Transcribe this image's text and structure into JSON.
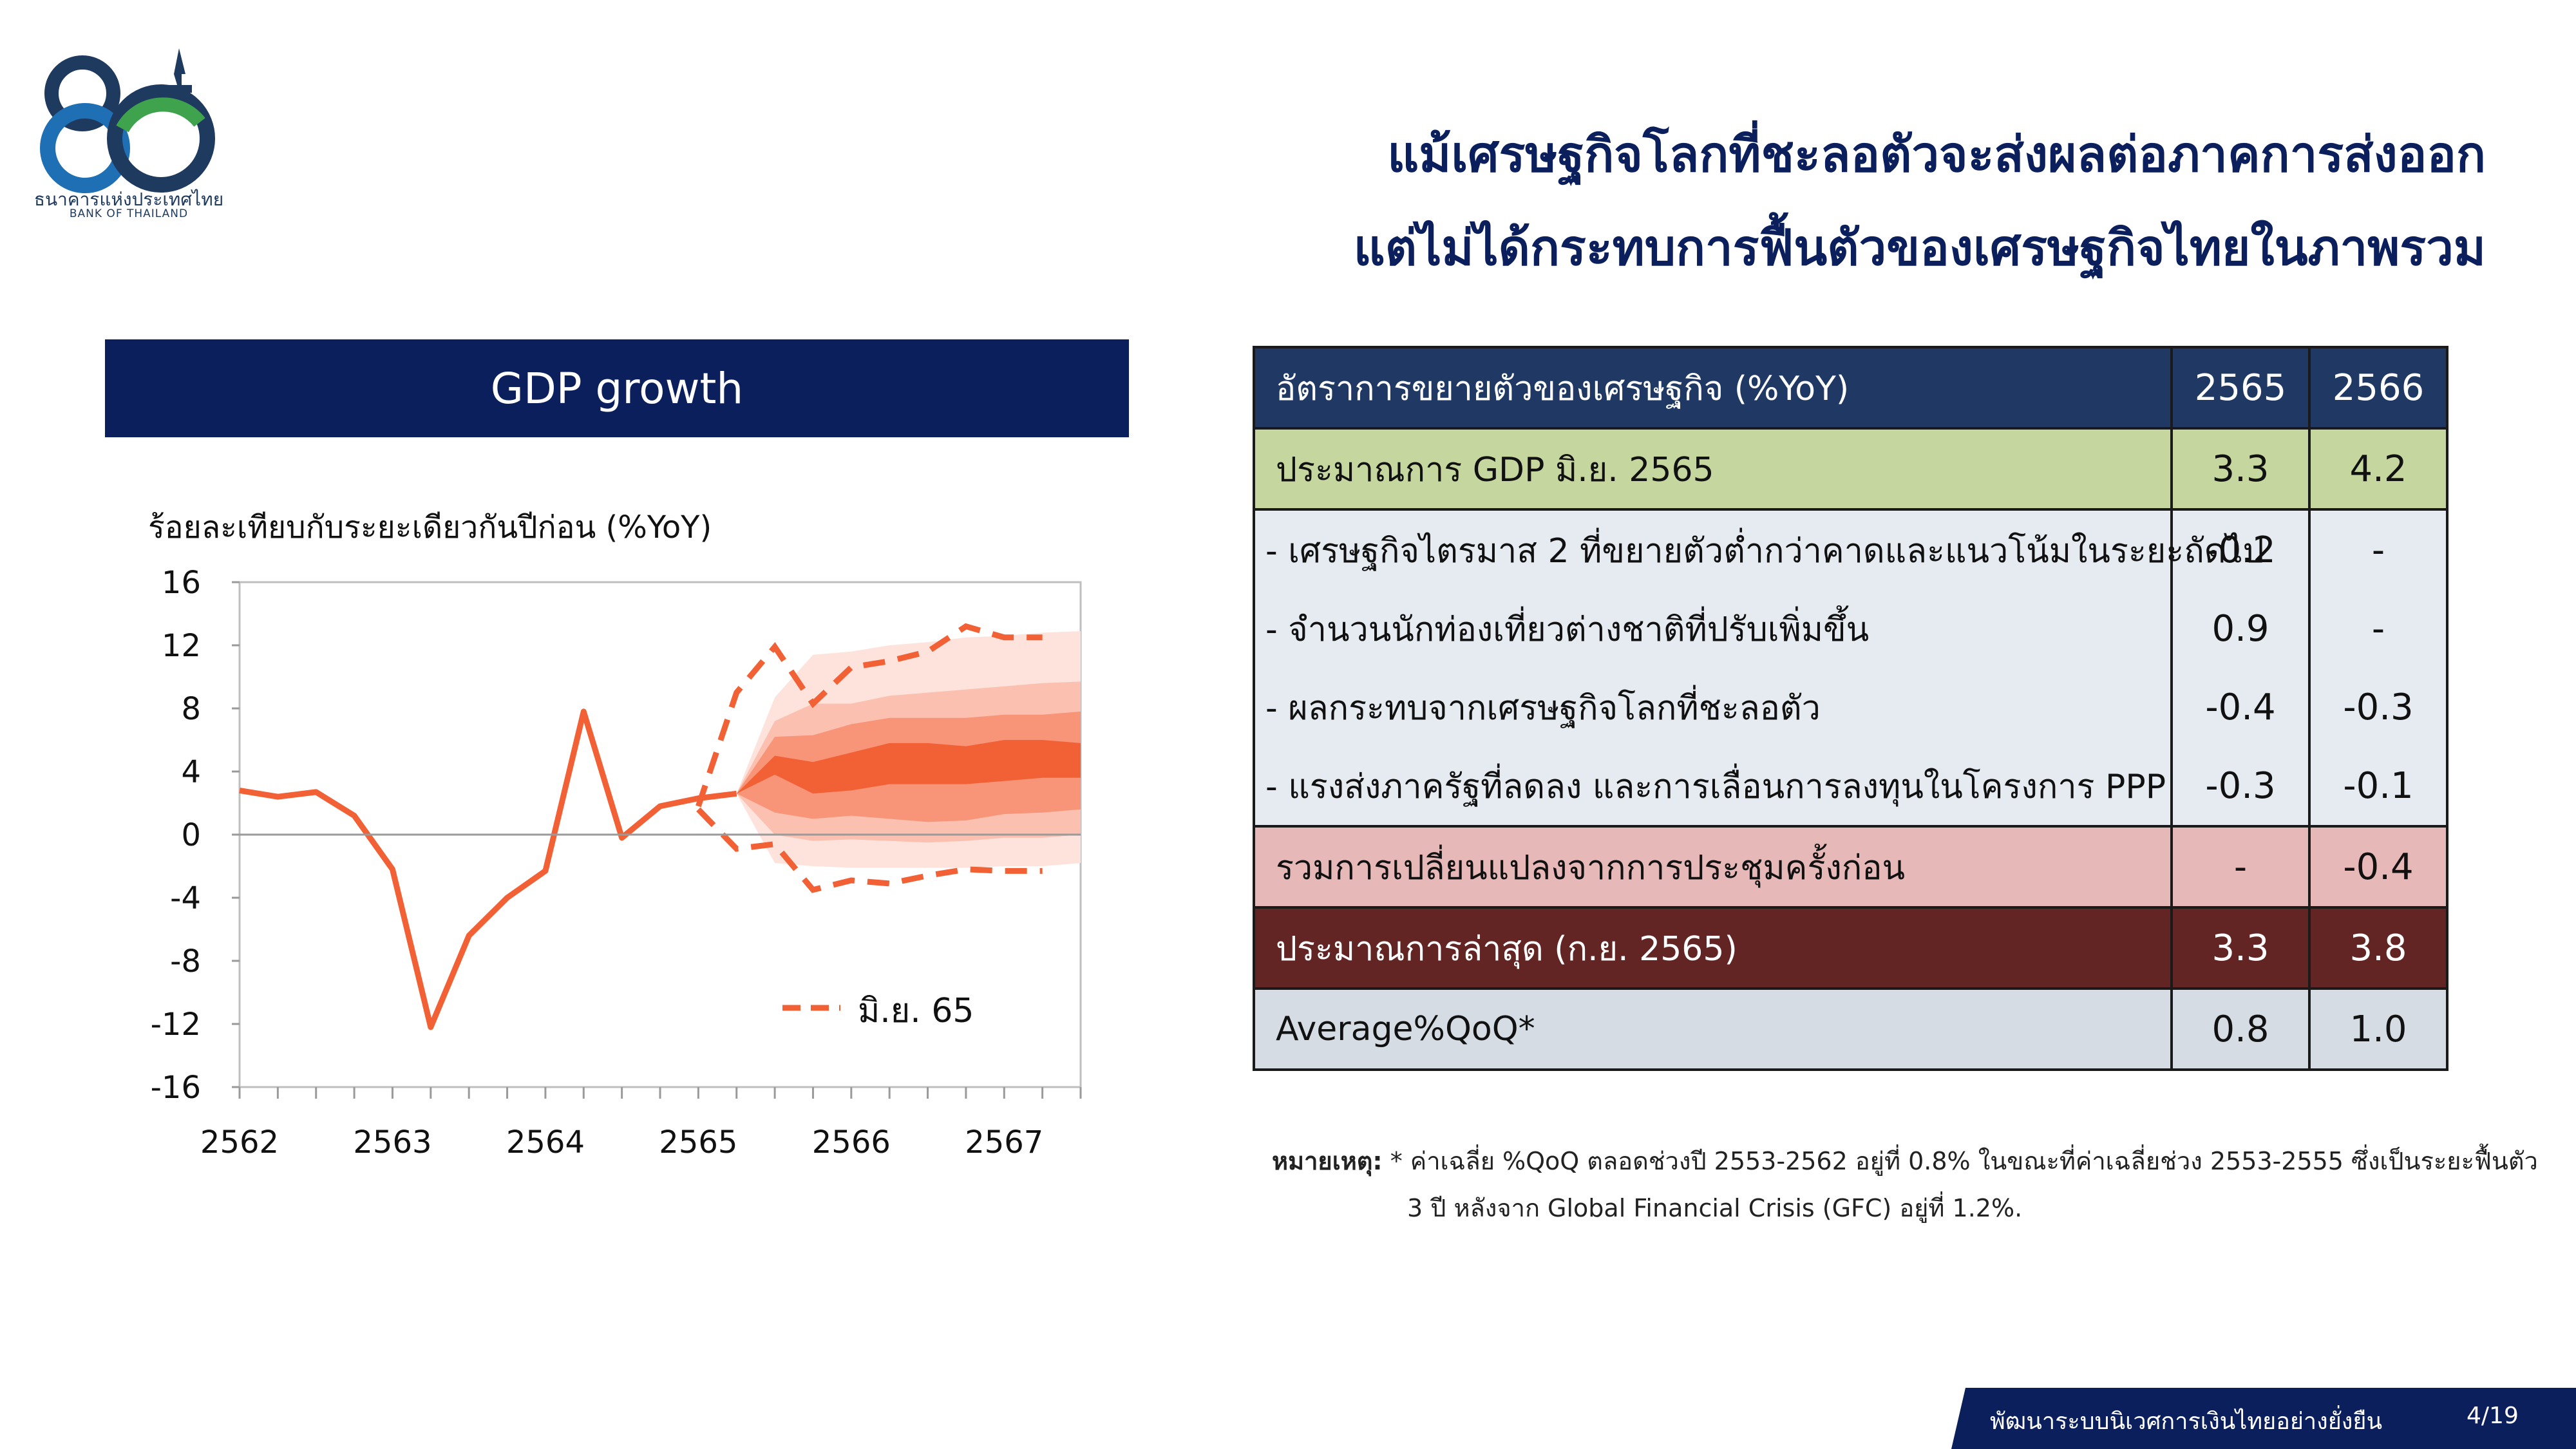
{
  "logo": {
    "number": "80",
    "name_th": "ธนาคารแห่งประเทศไทย",
    "name_en": "BANK OF THAILAND",
    "colors": {
      "navy": "#1e3a5f",
      "blue": "#1f6fb5",
      "green": "#3fa34d"
    }
  },
  "headline": {
    "line1": "แม้เศรษฐกิจโลกที่ชะลอตัวจะส่งผลต่อภาคการส่งออก",
    "line2": "แต่ไม่ได้กระทบการฟื้นตัวของเศรษฐกิจไทยในภาพรวม"
  },
  "chart_panel": {
    "header": "GDP growth"
  },
  "chart_data": {
    "type": "line",
    "title": "",
    "ylabel": "ร้อยละเทียบกับระยะเดียวกันปีก่อน (%YoY)",
    "xlabel": "",
    "ylim": [
      -16,
      16
    ],
    "yticks": [
      16,
      12,
      8,
      4,
      0,
      -4,
      -8,
      -12,
      -16
    ],
    "x_range": [
      0,
      22
    ],
    "xticks": [
      {
        "label": "2562",
        "x": 0
      },
      {
        "label": "2563",
        "x": 4
      },
      {
        "label": "2564",
        "x": 8
      },
      {
        "label": "2565",
        "x": 12
      },
      {
        "label": "2566",
        "x": 16
      },
      {
        "label": "2567",
        "x": 20
      }
    ],
    "grid": false,
    "series": [
      {
        "type": "line",
        "color": "#f26135",
        "points": [
          [
            0,
            2.8
          ],
          [
            1,
            2.4
          ],
          [
            2,
            2.7
          ],
          [
            3,
            1.2
          ],
          [
            4,
            -2.2
          ],
          [
            5,
            -12.2
          ],
          [
            6,
            -6.4
          ],
          [
            7,
            -4.0
          ],
          [
            8,
            -2.3
          ],
          [
            9,
            7.8
          ],
          [
            10,
            -0.2
          ],
          [
            11,
            1.8
          ],
          [
            12,
            2.3
          ],
          [
            13,
            2.6
          ]
        ]
      },
      {
        "name": "มิ.ย. 65",
        "type": "line",
        "style": "dashed",
        "color": "#f26135",
        "upper": [
          [
            12,
            1.8
          ],
          [
            13,
            9.0
          ],
          [
            14,
            11.9
          ],
          [
            15,
            8.3
          ],
          [
            16,
            10.6
          ],
          [
            17,
            11.0
          ],
          [
            18,
            11.6
          ],
          [
            19,
            13.2
          ],
          [
            20,
            12.5
          ],
          [
            21,
            12.5
          ]
        ],
        "lower": [
          [
            12,
            1.6
          ],
          [
            13,
            -0.9
          ],
          [
            14,
            -0.6
          ],
          [
            15,
            -3.5
          ],
          [
            16,
            -2.9
          ],
          [
            17,
            -3.1
          ],
          [
            18,
            -2.6
          ],
          [
            19,
            -2.2
          ],
          [
            20,
            -2.3
          ],
          [
            21,
            -2.3
          ]
        ]
      }
    ],
    "fan": {
      "x": [
        13,
        14,
        15,
        16,
        17,
        18,
        19,
        20,
        21,
        22
      ],
      "colors": [
        "#fde3dc",
        "#fbc0b0",
        "#f89478",
        "#f26135"
      ],
      "bands": [
        {
          "lower": [
            2.6,
            -1.8,
            -2.0,
            -2.1,
            -2.1,
            -2.1,
            -2.1,
            -2.0,
            -2.0,
            -1.8
          ],
          "upper": [
            2.6,
            8.7,
            11.4,
            11.6,
            12.0,
            12.2,
            12.5,
            12.6,
            12.8,
            12.9
          ]
        },
        {
          "lower": [
            2.6,
            0.0,
            -0.4,
            -0.3,
            -0.4,
            -0.5,
            -0.4,
            -0.2,
            -0.2,
            0.0
          ],
          "upper": [
            2.6,
            7.2,
            8.3,
            8.3,
            8.8,
            9.0,
            9.2,
            9.4,
            9.6,
            9.7
          ]
        },
        {
          "lower": [
            2.6,
            1.4,
            1.0,
            1.2,
            1.0,
            0.8,
            0.9,
            1.3,
            1.4,
            1.6
          ],
          "upper": [
            2.6,
            6.2,
            6.3,
            7.0,
            7.4,
            7.4,
            7.4,
            7.6,
            7.6,
            7.8
          ]
        },
        {
          "lower": [
            2.6,
            3.8,
            2.6,
            2.8,
            3.2,
            3.2,
            3.2,
            3.4,
            3.6,
            3.6
          ],
          "upper": [
            2.6,
            5.0,
            4.6,
            5.2,
            5.8,
            5.8,
            5.6,
            6.0,
            6.0,
            5.8
          ]
        }
      ]
    },
    "legend": {
      "label": "มิ.ย. 65",
      "placement": "bottom-right"
    }
  },
  "table": {
    "header": {
      "label": "อัตราการขยายตัวของเศรษฐกิจ (%YoY)",
      "y1": "2565",
      "y2": "2566"
    },
    "rows": [
      {
        "label": "ประมาณการ GDP มิ.ย. 2565",
        "v1": "3.3",
        "v2": "4.2"
      },
      {
        "label": "- เศรษฐกิจไตรมาส 2 ที่ขยายตัวต่ำกว่าคาดและแนวโน้มในระยะถัดไป",
        "v1": "-0.2",
        "v2": "-"
      },
      {
        "label": "- จำนวนนักท่องเที่ยวต่างชาติที่ปรับเพิ่มขึ้น",
        "v1": "0.9",
        "v2": "-"
      },
      {
        "label": "- ผลกระทบจากเศรษฐกิจโลกที่ชะลอตัว",
        "v1": "-0.4",
        "v2": "-0.3"
      },
      {
        "label": "- แรงส่งภาครัฐที่ลดลง และการเลื่อนการลงทุนในโครงการ PPP",
        "v1": "-0.3",
        "v2": "-0.1"
      },
      {
        "label": "รวมการเปลี่ยนแปลงจากการประชุมครั้งก่อน",
        "v1": "-",
        "v2": "-0.4"
      },
      {
        "label": "ประมาณการล่าสุด (ก.ย. 2565)",
        "v1": "3.3",
        "v2": "3.8"
      },
      {
        "label": "Average%QoQ*",
        "v1": "0.8",
        "v2": "1.0"
      }
    ]
  },
  "note": {
    "label": "หมายเหตุ:",
    "line1": " * ค่าเฉลี่ย %QoQ ตลอดช่วงปี 2553-2562 อยู่ที่ 0.8% ในขณะที่ค่าเฉลี่ยช่วง 2553-2555 ซึ่งเป็นระยะฟื้นตัว",
    "line2": "3 ปี หลังจาก Global Financial Crisis (GFC) อยู่ที่ 1.2%."
  },
  "footer": {
    "text": "พัฒนาระบบนิเวศการเงินไทยอย่างยั่งยืน",
    "page": "4/19"
  }
}
